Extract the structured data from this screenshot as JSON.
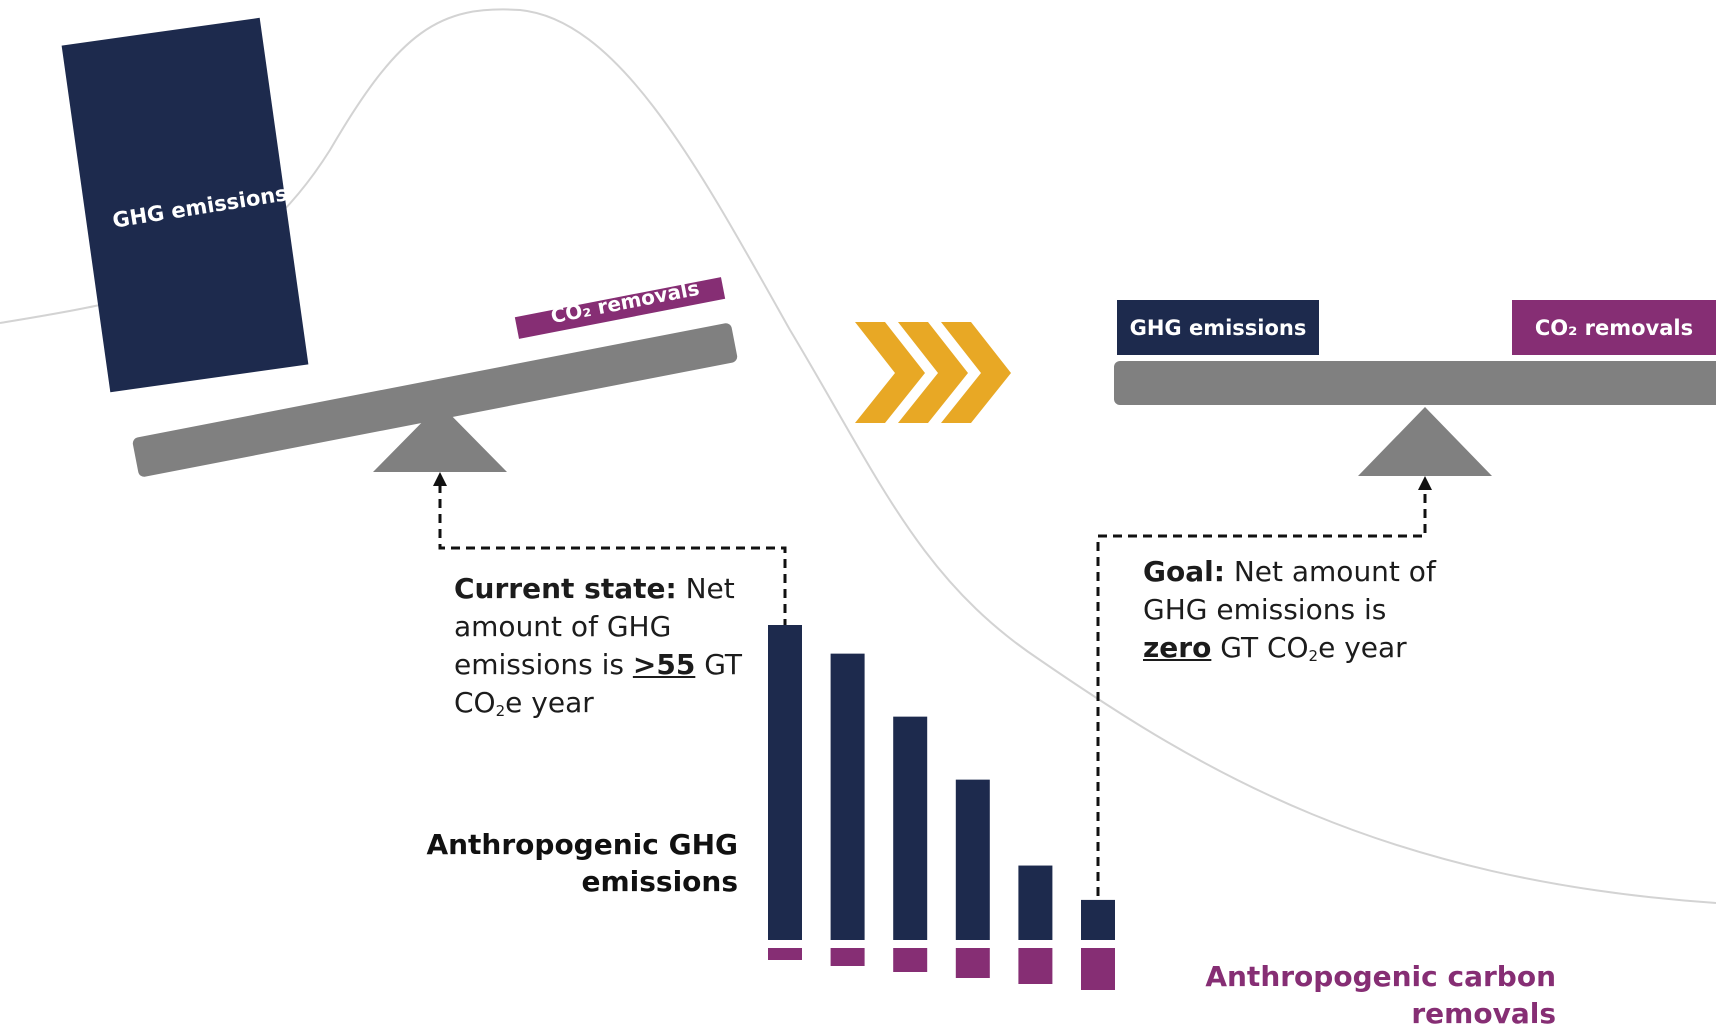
{
  "colors": {
    "emissions": "#1d2a4d",
    "removals": "#862e74",
    "beam": "#808080",
    "arrows": "#e8a825",
    "curve": "#d3d3d3"
  },
  "left_scale": {
    "emissions_block_label": "GHG emissions",
    "removals_block_label": "CO₂ removals",
    "note_bold": "Current state:",
    "note_text_1": " Net amount of GHG emissions is ",
    "note_value": ">55",
    "note_text_2": " GT CO",
    "note_sub": "2",
    "note_text_3": "e year"
  },
  "right_scale": {
    "emissions_block_label": "GHG emissions",
    "removals_block_label": "CO₂ removals",
    "note_bold": "Goal:",
    "note_text_1": " Net amount of GHG emissions is ",
    "note_value": "zero",
    "note_text_2": " GT CO",
    "note_sub": "2",
    "note_text_3": "e year"
  },
  "transition_icon": "triple-chevron-right-icon",
  "bars": {
    "emissions_label": "Anthropogenic GHG emissions",
    "removals_label": "Anthropogenic carbon removals",
    "emissions": [
      55,
      50,
      39,
      28,
      13,
      7
    ],
    "removals": [
      2,
      3,
      4,
      5,
      6,
      7
    ]
  }
}
